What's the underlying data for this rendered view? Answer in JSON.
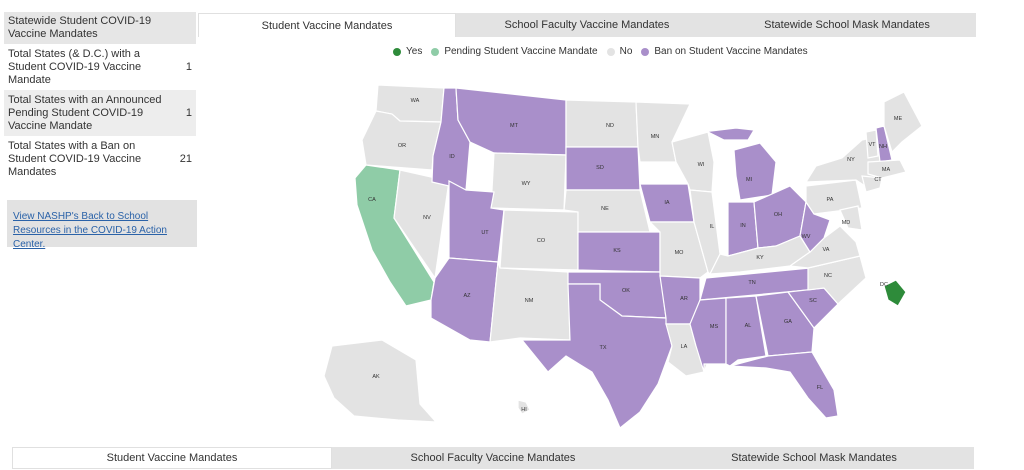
{
  "summary": {
    "title": "Statewide Student COVID-19 Vaccine Mandates",
    "rows": [
      {
        "label": "Total States (& D.C.) with a Student COVID-19 Vaccine Mandate",
        "value": "1"
      },
      {
        "label": "Total States with an Announced Pending Student COVID-19 Vaccine Mandate",
        "value": "1"
      },
      {
        "label": "Total States with a Ban on Student COVID-19 Vaccine Mandates",
        "value": "21"
      }
    ],
    "resource_link": "View NASHP's Back to School Resources in the COVID-19 Action Center."
  },
  "tabs": [
    "Student Vaccine Mandates",
    "School Faculty Vaccine Mandates",
    "Statewide School Mask Mandates"
  ],
  "active_tab_top": "Student Vaccine Mandates",
  "active_tab_bottom": "Student Vaccine Mandates",
  "legend": [
    {
      "label": "Yes",
      "color": "#2e8b3a"
    },
    {
      "label": "Pending Student Vaccine Mandate",
      "color": "#8fcca7"
    },
    {
      "label": "No",
      "color": "#e3e3e3"
    },
    {
      "label": "Ban on Student Vaccine Mandates",
      "color": "#a98fca"
    }
  ],
  "states": [
    {
      "abbr": "WA",
      "status": "No"
    },
    {
      "abbr": "OR",
      "status": "No"
    },
    {
      "abbr": "CA",
      "status": "Pending Student Vaccine Mandate"
    },
    {
      "abbr": "NV",
      "status": "No"
    },
    {
      "abbr": "ID",
      "status": "Ban on Student Vaccine Mandates"
    },
    {
      "abbr": "MT",
      "status": "Ban on Student Vaccine Mandates"
    },
    {
      "abbr": "WY",
      "status": "No"
    },
    {
      "abbr": "UT",
      "status": "Ban on Student Vaccine Mandates"
    },
    {
      "abbr": "AZ",
      "status": "Ban on Student Vaccine Mandates"
    },
    {
      "abbr": "CO",
      "status": "No"
    },
    {
      "abbr": "NM",
      "status": "No"
    },
    {
      "abbr": "ND",
      "status": "No"
    },
    {
      "abbr": "SD",
      "status": "Ban on Student Vaccine Mandates"
    },
    {
      "abbr": "NE",
      "status": "No"
    },
    {
      "abbr": "KS",
      "status": "Ban on Student Vaccine Mandates"
    },
    {
      "abbr": "OK",
      "status": "Ban on Student Vaccine Mandates"
    },
    {
      "abbr": "TX",
      "status": "Ban on Student Vaccine Mandates"
    },
    {
      "abbr": "MN",
      "status": "No"
    },
    {
      "abbr": "IA",
      "status": "Ban on Student Vaccine Mandates"
    },
    {
      "abbr": "MO",
      "status": "No"
    },
    {
      "abbr": "AR",
      "status": "Ban on Student Vaccine Mandates"
    },
    {
      "abbr": "LA",
      "status": "No"
    },
    {
      "abbr": "WI",
      "status": "No"
    },
    {
      "abbr": "IL",
      "status": "No"
    },
    {
      "abbr": "MI",
      "status": "Ban on Student Vaccine Mandates"
    },
    {
      "abbr": "IN",
      "status": "Ban on Student Vaccine Mandates"
    },
    {
      "abbr": "OH",
      "status": "Ban on Student Vaccine Mandates"
    },
    {
      "abbr": "KY",
      "status": "No"
    },
    {
      "abbr": "TN",
      "status": "Ban on Student Vaccine Mandates"
    },
    {
      "abbr": "MS",
      "status": "Ban on Student Vaccine Mandates"
    },
    {
      "abbr": "AL",
      "status": "Ban on Student Vaccine Mandates"
    },
    {
      "abbr": "GA",
      "status": "Ban on Student Vaccine Mandates"
    },
    {
      "abbr": "FL",
      "status": "Ban on Student Vaccine Mandates"
    },
    {
      "abbr": "SC",
      "status": "Ban on Student Vaccine Mandates"
    },
    {
      "abbr": "NC",
      "status": "No"
    },
    {
      "abbr": "VA",
      "status": "No"
    },
    {
      "abbr": "WV",
      "status": "Ban on Student Vaccine Mandates"
    },
    {
      "abbr": "PA",
      "status": "No"
    },
    {
      "abbr": "NY",
      "status": "No"
    },
    {
      "abbr": "VT",
      "status": "No"
    },
    {
      "abbr": "NH",
      "status": "Ban on Student Vaccine Mandates"
    },
    {
      "abbr": "ME",
      "status": "No"
    },
    {
      "abbr": "MA",
      "status": "No"
    },
    {
      "abbr": "CT",
      "status": "No"
    },
    {
      "abbr": "MD",
      "status": "No"
    },
    {
      "abbr": "AK",
      "status": "No"
    },
    {
      "abbr": "HI",
      "status": "No"
    },
    {
      "abbr": "DC",
      "status": "Yes"
    }
  ]
}
